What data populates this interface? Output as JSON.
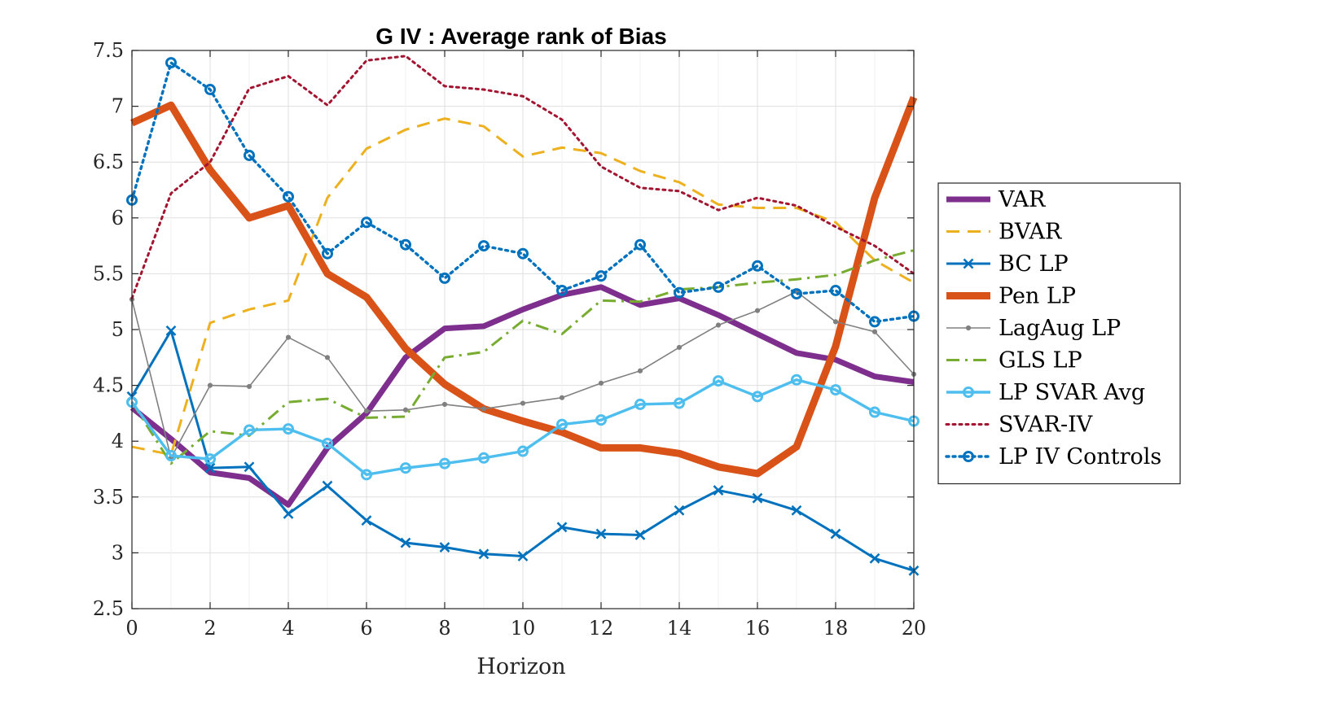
{
  "chart_data": {
    "type": "line",
    "title": "G IV : Average rank of Bias",
    "xlabel": "Horizon",
    "ylabel": "",
    "xlim": [
      0,
      20
    ],
    "ylim": [
      2.5,
      7.5
    ],
    "xticks": [
      0,
      2,
      4,
      6,
      8,
      10,
      12,
      14,
      16,
      18,
      20
    ],
    "yticks": [
      2.5,
      3,
      3.5,
      4,
      4.5,
      5,
      5.5,
      6,
      6.5,
      7,
      7.5
    ],
    "xtick_labels": [
      "0",
      "2",
      "4",
      "6",
      "8",
      "10",
      "12",
      "14",
      "16",
      "18",
      "20"
    ],
    "ytick_labels": [
      "2.5",
      "3",
      "3.5",
      "4",
      "4.5",
      "5",
      "5.5",
      "6",
      "6.5",
      "7",
      "7.5"
    ],
    "grid": true,
    "legend_position": "outside-right",
    "x": [
      0,
      1,
      2,
      3,
      4,
      5,
      6,
      7,
      8,
      9,
      10,
      11,
      12,
      13,
      14,
      15,
      16,
      17,
      18,
      19,
      20
    ],
    "series": [
      {
        "name": "VAR",
        "color": "#7E2F8E",
        "line_style": "solid",
        "line_width": "thick",
        "marker": "none",
        "values": [
          4.3,
          4.02,
          3.72,
          3.67,
          3.43,
          3.94,
          4.25,
          4.75,
          5.01,
          5.03,
          5.18,
          5.31,
          5.38,
          5.22,
          5.28,
          5.13,
          4.96,
          4.79,
          4.73,
          4.58,
          4.53
        ]
      },
      {
        "name": "BVAR",
        "color": "#EDB120",
        "line_style": "dashed",
        "line_width": "normal",
        "marker": "none",
        "values": [
          3.95,
          3.88,
          5.06,
          5.18,
          5.26,
          6.18,
          6.62,
          6.79,
          6.89,
          6.82,
          6.55,
          6.63,
          6.58,
          6.42,
          6.32,
          6.12,
          6.09,
          6.09,
          5.96,
          5.62,
          5.42
        ]
      },
      {
        "name": "BC LP",
        "color": "#0072BD",
        "line_style": "solid",
        "line_width": "normal",
        "marker": "x",
        "values": [
          4.4,
          4.99,
          3.76,
          3.77,
          3.35,
          3.6,
          3.29,
          3.09,
          3.05,
          2.99,
          2.97,
          3.23,
          3.17,
          3.16,
          3.38,
          3.56,
          3.49,
          3.38,
          3.17,
          2.95,
          2.84
        ]
      },
      {
        "name": "Pen LP",
        "color": "#D95319",
        "line_style": "solid",
        "line_width": "extra-thick",
        "marker": "none",
        "values": [
          6.85,
          7.01,
          6.43,
          6.0,
          6.11,
          5.5,
          5.29,
          4.83,
          4.51,
          4.29,
          4.18,
          4.08,
          3.94,
          3.94,
          3.89,
          3.77,
          3.71,
          3.95,
          4.85,
          6.18,
          7.08
        ]
      },
      {
        "name": "LagAug LP",
        "color": "#808080",
        "line_style": "solid",
        "line_width": "thin",
        "marker": "dot",
        "values": [
          5.27,
          3.85,
          4.5,
          4.49,
          4.93,
          4.75,
          4.27,
          4.28,
          4.33,
          4.29,
          4.34,
          4.39,
          4.52,
          4.63,
          4.84,
          5.04,
          5.17,
          5.34,
          5.07,
          4.98,
          4.6
        ]
      },
      {
        "name": "GLS LP",
        "color": "#77AC30",
        "line_style": "dashdot",
        "line_width": "normal",
        "marker": "none",
        "values": [
          4.35,
          3.8,
          4.09,
          4.05,
          4.35,
          4.38,
          4.21,
          4.22,
          4.75,
          4.8,
          5.08,
          4.96,
          5.26,
          5.25,
          5.36,
          5.38,
          5.42,
          5.45,
          5.49,
          5.62,
          5.71
        ]
      },
      {
        "name": "LP SVAR Avg",
        "color": "#4DBEEE",
        "line_style": "solid",
        "line_width": "medium",
        "marker": "circle",
        "values": [
          4.35,
          3.87,
          3.84,
          4.1,
          4.11,
          3.98,
          3.7,
          3.76,
          3.8,
          3.85,
          3.91,
          4.15,
          4.19,
          4.33,
          4.34,
          4.54,
          4.4,
          4.55,
          4.46,
          4.26,
          4.18
        ]
      },
      {
        "name": "SVAR-IV",
        "color": "#A2142F",
        "line_style": "dotted",
        "line_width": "normal",
        "marker": "none",
        "values": [
          5.28,
          6.22,
          6.5,
          7.16,
          7.27,
          7.01,
          7.41,
          7.45,
          7.18,
          7.15,
          7.09,
          6.88,
          6.46,
          6.27,
          6.24,
          6.07,
          6.18,
          6.11,
          5.92,
          5.75,
          5.5
        ]
      },
      {
        "name": "LP IV Controls",
        "color": "#0072BD",
        "line_style": "dotted",
        "line_width": "medium",
        "marker": "circle",
        "values": [
          6.16,
          7.39,
          7.15,
          6.56,
          6.19,
          5.68,
          5.96,
          5.76,
          5.46,
          5.75,
          5.68,
          5.35,
          5.48,
          5.76,
          5.33,
          5.38,
          5.57,
          5.32,
          5.35,
          5.07,
          5.12
        ]
      }
    ]
  }
}
